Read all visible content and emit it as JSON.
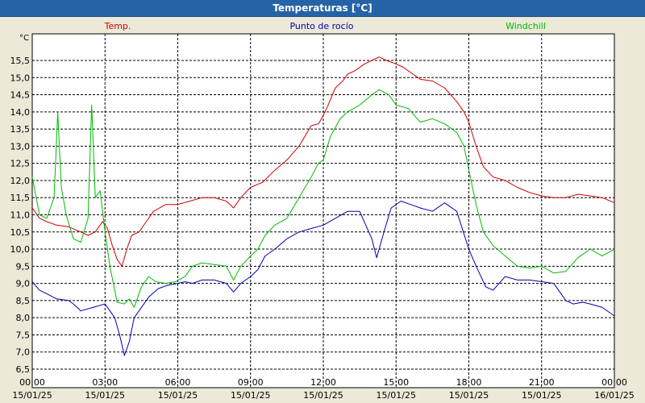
{
  "window": {
    "title": "Temperaturas [°C]"
  },
  "chart_data": {
    "type": "line",
    "title": "Temperaturas [°C]",
    "ylabel": "°C",
    "ylim": [
      6.5,
      15.8
    ],
    "xlim_hours": [
      0,
      24
    ],
    "grid": true,
    "yticks": [
      "6,5",
      "7,0",
      "7,5",
      "8,0",
      "8,5",
      "9,0",
      "9,5",
      "10,0",
      "10,5",
      "11,0",
      "11,5",
      "12,0",
      "12,5",
      "13,0",
      "13,5",
      "14,0",
      "14,5",
      "15,0",
      "15,5"
    ],
    "xticks": [
      {
        "time": "00:00",
        "date": "15/01/25"
      },
      {
        "time": "03:00",
        "date": "15/01/25"
      },
      {
        "time": "06:00",
        "date": "15/01/25"
      },
      {
        "time": "09:00",
        "date": "15/01/25"
      },
      {
        "time": "12:00",
        "date": "15/01/25"
      },
      {
        "time": "15:00",
        "date": "15/01/25"
      },
      {
        "time": "18:00",
        "date": "15/01/25"
      },
      {
        "time": "21:00",
        "date": "15/01/25"
      },
      {
        "time": "00:00",
        "date": "16/01/25"
      }
    ],
    "series": [
      {
        "name": "Temp.",
        "color": "#cc0000",
        "points": [
          [
            0,
            11.2
          ],
          [
            0.3,
            10.9
          ],
          [
            0.6,
            10.8
          ],
          [
            1,
            10.7
          ],
          [
            1.5,
            10.65
          ],
          [
            2,
            10.5
          ],
          [
            2.3,
            10.4
          ],
          [
            2.6,
            10.5
          ],
          [
            2.9,
            10.8
          ],
          [
            3.1,
            10.6
          ],
          [
            3.3,
            10.1
          ],
          [
            3.5,
            9.7
          ],
          [
            3.7,
            9.5
          ],
          [
            3.9,
            10.0
          ],
          [
            4.1,
            10.4
          ],
          [
            4.4,
            10.5
          ],
          [
            4.7,
            10.8
          ],
          [
            5,
            11.1
          ],
          [
            5.5,
            11.3
          ],
          [
            6,
            11.3
          ],
          [
            6.5,
            11.4
          ],
          [
            7,
            11.5
          ],
          [
            7.5,
            11.5
          ],
          [
            8,
            11.4
          ],
          [
            8.3,
            11.2
          ],
          [
            8.6,
            11.5
          ],
          [
            9,
            11.8
          ],
          [
            9.5,
            11.95
          ],
          [
            10,
            12.3
          ],
          [
            10.5,
            12.6
          ],
          [
            11,
            13.0
          ],
          [
            11.5,
            13.6
          ],
          [
            11.8,
            13.65
          ],
          [
            12,
            13.9
          ],
          [
            12.2,
            14.2
          ],
          [
            12.5,
            14.7
          ],
          [
            12.8,
            14.9
          ],
          [
            13,
            15.1
          ],
          [
            13.3,
            15.2
          ],
          [
            13.7,
            15.4
          ],
          [
            14,
            15.5
          ],
          [
            14.3,
            15.6
          ],
          [
            14.6,
            15.5
          ],
          [
            15,
            15.4
          ],
          [
            15.3,
            15.3
          ],
          [
            15.7,
            15.1
          ],
          [
            16,
            14.95
          ],
          [
            16.5,
            14.9
          ],
          [
            17,
            14.7
          ],
          [
            17.5,
            14.3
          ],
          [
            17.8,
            14.0
          ],
          [
            18,
            13.7
          ],
          [
            18.3,
            13.0
          ],
          [
            18.6,
            12.4
          ],
          [
            19,
            12.1
          ],
          [
            19.5,
            12.0
          ],
          [
            20,
            11.8
          ],
          [
            20.5,
            11.65
          ],
          [
            21,
            11.55
          ],
          [
            21.5,
            11.5
          ],
          [
            22,
            11.5
          ],
          [
            22.5,
            11.6
          ],
          [
            23,
            11.55
          ],
          [
            23.5,
            11.5
          ],
          [
            24,
            11.35
          ]
        ]
      },
      {
        "name": "Punto de rocío",
        "color": "#0000b0",
        "points": [
          [
            0,
            9.05
          ],
          [
            0.3,
            8.8
          ],
          [
            0.6,
            8.7
          ],
          [
            1,
            8.55
          ],
          [
            1.5,
            8.5
          ],
          [
            1.7,
            8.4
          ],
          [
            2,
            8.2
          ],
          [
            2.5,
            8.3
          ],
          [
            3,
            8.4
          ],
          [
            3.2,
            8.2
          ],
          [
            3.4,
            8.0
          ],
          [
            3.6,
            7.5
          ],
          [
            3.8,
            6.9
          ],
          [
            4,
            7.3
          ],
          [
            4.2,
            8.0
          ],
          [
            4.5,
            8.3
          ],
          [
            4.8,
            8.6
          ],
          [
            5.2,
            8.85
          ],
          [
            5.6,
            8.95
          ],
          [
            6,
            9.0
          ],
          [
            6.3,
            9.05
          ],
          [
            6.6,
            9.0
          ],
          [
            7,
            9.1
          ],
          [
            7.5,
            9.1
          ],
          [
            8,
            9.0
          ],
          [
            8.3,
            8.75
          ],
          [
            8.6,
            9.0
          ],
          [
            9,
            9.2
          ],
          [
            9.3,
            9.4
          ],
          [
            9.6,
            9.8
          ],
          [
            10,
            10.0
          ],
          [
            10.5,
            10.3
          ],
          [
            11,
            10.5
          ],
          [
            11.5,
            10.6
          ],
          [
            12,
            10.7
          ],
          [
            12.5,
            10.9
          ],
          [
            13,
            11.1
          ],
          [
            13.5,
            11.1
          ],
          [
            14,
            10.3
          ],
          [
            14.2,
            9.75
          ],
          [
            14.5,
            10.5
          ],
          [
            14.8,
            11.2
          ],
          [
            15.2,
            11.4
          ],
          [
            15.6,
            11.3
          ],
          [
            16,
            11.2
          ],
          [
            16.5,
            11.1
          ],
          [
            17,
            11.35
          ],
          [
            17.5,
            11.1
          ],
          [
            18,
            10.0
          ],
          [
            18.3,
            9.5
          ],
          [
            18.7,
            8.9
          ],
          [
            19,
            8.8
          ],
          [
            19.5,
            9.2
          ],
          [
            20,
            9.1
          ],
          [
            20.5,
            9.1
          ],
          [
            21,
            9.05
          ],
          [
            21.5,
            9.0
          ],
          [
            22,
            8.5
          ],
          [
            22.3,
            8.4
          ],
          [
            22.7,
            8.45
          ],
          [
            23,
            8.4
          ],
          [
            23.5,
            8.3
          ],
          [
            24,
            8.05
          ]
        ]
      },
      {
        "name": "Windchill",
        "color": "#00bb00",
        "points": [
          [
            0,
            12.1
          ],
          [
            0.3,
            11.0
          ],
          [
            0.6,
            10.9
          ],
          [
            0.9,
            11.5
          ],
          [
            1.05,
            14.0
          ],
          [
            1.2,
            11.8
          ],
          [
            1.4,
            11.0
          ],
          [
            1.7,
            10.3
          ],
          [
            2.0,
            10.2
          ],
          [
            2.3,
            10.9
          ],
          [
            2.45,
            14.2
          ],
          [
            2.6,
            11.5
          ],
          [
            2.8,
            11.7
          ],
          [
            3.0,
            10.5
          ],
          [
            3.2,
            9.5
          ],
          [
            3.5,
            8.45
          ],
          [
            3.8,
            8.4
          ],
          [
            4.0,
            8.55
          ],
          [
            4.2,
            8.3
          ],
          [
            4.5,
            8.9
          ],
          [
            4.8,
            9.2
          ],
          [
            5.1,
            9.05
          ],
          [
            5.5,
            9.0
          ],
          [
            5.9,
            9.05
          ],
          [
            6.3,
            9.2
          ],
          [
            6.6,
            9.5
          ],
          [
            7,
            9.6
          ],
          [
            7.5,
            9.55
          ],
          [
            8,
            9.5
          ],
          [
            8.3,
            9.1
          ],
          [
            8.6,
            9.5
          ],
          [
            9,
            9.8
          ],
          [
            9.3,
            10.0
          ],
          [
            9.6,
            10.4
          ],
          [
            10,
            10.7
          ],
          [
            10.5,
            10.9
          ],
          [
            11,
            11.5
          ],
          [
            11.5,
            12.1
          ],
          [
            11.8,
            12.5
          ],
          [
            12,
            12.6
          ],
          [
            12.3,
            13.3
          ],
          [
            12.7,
            13.8
          ],
          [
            13,
            14.0
          ],
          [
            13.5,
            14.2
          ],
          [
            14,
            14.5
          ],
          [
            14.3,
            14.65
          ],
          [
            14.7,
            14.5
          ],
          [
            15,
            14.2
          ],
          [
            15.5,
            14.1
          ],
          [
            16,
            13.7
          ],
          [
            16.5,
            13.8
          ],
          [
            17,
            13.65
          ],
          [
            17.5,
            13.4
          ],
          [
            17.8,
            13.0
          ],
          [
            18,
            12.3
          ],
          [
            18.3,
            11.3
          ],
          [
            18.6,
            10.5
          ],
          [
            19,
            10.1
          ],
          [
            19.5,
            9.8
          ],
          [
            20,
            9.5
          ],
          [
            20.5,
            9.45
          ],
          [
            21,
            9.5
          ],
          [
            21.5,
            9.3
          ],
          [
            22,
            9.35
          ],
          [
            22.5,
            9.75
          ],
          [
            23,
            10.0
          ],
          [
            23.5,
            9.8
          ],
          [
            24,
            10.0
          ]
        ]
      }
    ]
  }
}
